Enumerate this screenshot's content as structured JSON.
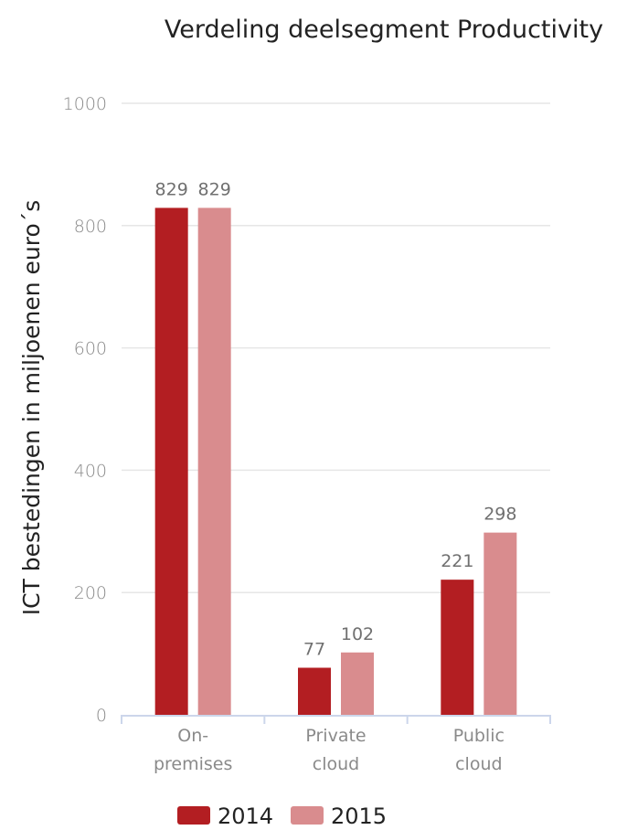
{
  "chart_data": {
    "type": "bar",
    "title": "Verdeling deelsegment Productivity",
    "xlabel": "",
    "ylabel": "ICT bestedingen in miljoenen euro´s",
    "categories": [
      [
        "On-",
        "premises"
      ],
      [
        "Private",
        "cloud"
      ],
      [
        "Public",
        "cloud"
      ]
    ],
    "series": [
      {
        "name": "2014",
        "color": "#b31e22",
        "values": [
          829,
          77,
          221
        ]
      },
      {
        "name": "2015",
        "color": "#d98c8e",
        "values": [
          829,
          102,
          298
        ]
      }
    ],
    "ylim": [
      0,
      1000
    ],
    "yticks": [
      "0",
      "200",
      "400",
      "600",
      "800",
      "1000"
    ],
    "ytick_values": [
      0,
      200,
      400,
      600,
      800,
      1000
    ],
    "grid": true,
    "legend": "bottom",
    "colors": {
      "grid": "#e6e6e6",
      "axis": "#ccd6eb"
    }
  }
}
